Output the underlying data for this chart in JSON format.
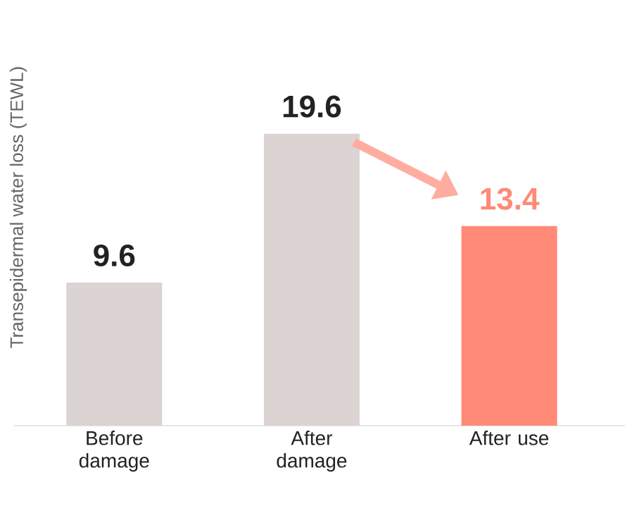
{
  "chart_data": {
    "type": "bar",
    "ylabel": "Transepidermal water loss (TEWL)",
    "categories": [
      "Before damage",
      "After damage",
      "After use"
    ],
    "values": [
      9.6,
      19.6,
      13.4
    ],
    "colors": [
      "#dcd3d3",
      "#dcd3d3",
      "#ff8a78"
    ],
    "data_labels": true
  }
}
